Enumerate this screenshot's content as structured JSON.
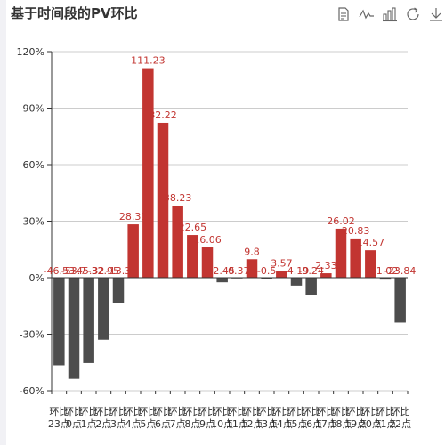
{
  "title": "基于时间段的PV环比",
  "toolbox": {
    "icons": [
      {
        "name": "data-view-icon"
      },
      {
        "name": "line-chart-icon"
      },
      {
        "name": "bar-chart-icon"
      },
      {
        "name": "restore-icon"
      },
      {
        "name": "download-icon"
      }
    ]
  },
  "colors": {
    "positive": "#c23531",
    "negative": "#4d4d4d",
    "axis": "#333333",
    "grid": "#cccccc",
    "label": "#c23531"
  },
  "chart_data": {
    "type": "bar",
    "title": "基于时间段的PV环比",
    "categories": [
      "环比23点",
      "环比0点",
      "环比1点",
      "环比2点",
      "环比3点",
      "环比4点",
      "环比5点",
      "环比6点",
      "环比7点",
      "环比8点",
      "环比9点",
      "环比10点",
      "环比11点",
      "环比12点",
      "环比13点",
      "环比14点",
      "环比15点",
      "环比16点",
      "环比17点",
      "环比18点",
      "环比19点",
      "环比20点",
      "环比21点",
      "环比22点"
    ],
    "values": [
      -46.53,
      -53.7,
      -45.32,
      -32.95,
      -13.3,
      28.31,
      111.23,
      82.22,
      38.23,
      22.65,
      16.06,
      -2.45,
      -0.37,
      9.8,
      -0.5,
      3.57,
      -4.19,
      -9.24,
      2.33,
      26.02,
      20.83,
      14.57,
      -1.02,
      -23.84
    ],
    "data_labels": [
      "-46.53",
      "-53.7",
      "-45.32",
      "-32.95",
      "-13.3",
      "28.31",
      "111.23",
      "82.22",
      "38.23",
      "22.65",
      "16.06",
      "-2.45",
      "-0.37",
      "9.8",
      "-0.5",
      "3.57",
      "-4.19",
      "-9.24",
      "2.33",
      "26.02",
      "20.83",
      "14.57",
      "-1.02",
      "-23.84"
    ],
    "yticks": [
      "120%",
      "90%",
      "60%",
      "30%",
      "0%",
      "-30%",
      "-60%"
    ],
    "ylim": [
      -60,
      120
    ],
    "grid": true
  }
}
